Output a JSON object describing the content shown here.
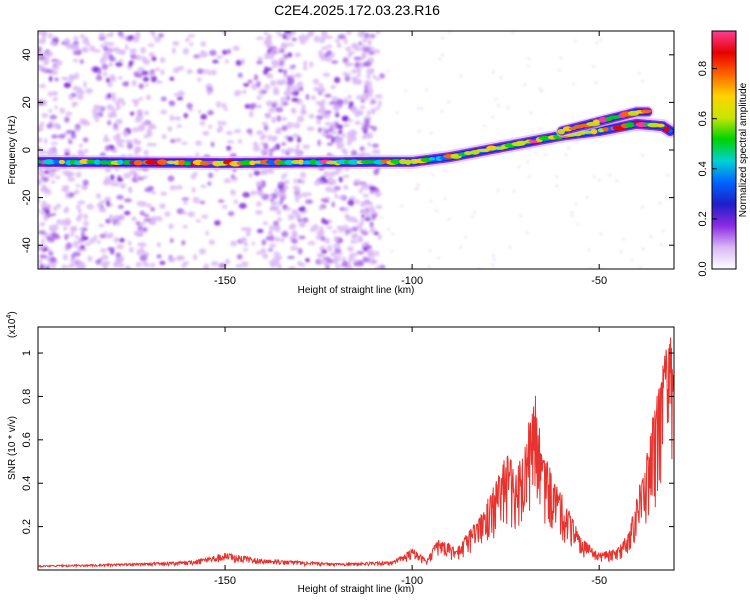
{
  "title": "C2E4.2025.172.03.23.R16",
  "chart_data": [
    {
      "type": "heatmap",
      "title": "C2E4.2025.172.03.23.R16",
      "xlabel": "Height of straight line (km)",
      "ylabel": "Frequency (Hz)",
      "xlim": [
        -200,
        -30
      ],
      "ylim": [
        -50,
        50
      ],
      "x_ticks": [
        -150,
        -100,
        -50
      ],
      "y_ticks": [
        -40,
        -20,
        0,
        20,
        40
      ],
      "colorbar": {
        "label": "Normalized spectral amplitude",
        "range": [
          0,
          0.95
        ],
        "ticks": [
          0.0,
          0.2,
          0.4,
          0.6,
          0.8
        ],
        "colors": [
          "#ffffff",
          "#d9b8f5",
          "#8b2be2",
          "#1e1ec8",
          "#0064ff",
          "#00d2d2",
          "#00d200",
          "#c8e600",
          "#ffd200",
          "#ff6400",
          "#e60000",
          "#ff3c96"
        ]
      },
      "tracks": [
        {
          "name": "main",
          "points": [
            [
              -200,
              -5
            ],
            [
              -150,
              -5.5
            ],
            [
              -110,
              -5
            ],
            [
              -100,
              -5
            ],
            [
              -90,
              -3
            ],
            [
              -80,
              0
            ],
            [
              -70,
              3
            ],
            [
              -60,
              6
            ],
            [
              -50,
              8
            ],
            [
              -40,
              11
            ],
            [
              -33,
              10
            ],
            [
              -31,
              8
            ]
          ]
        },
        {
          "name": "upper",
          "points": [
            [
              -60,
              8
            ],
            [
              -50,
              12
            ],
            [
              -40,
              16
            ],
            [
              -37,
              16
            ]
          ]
        }
      ],
      "noise_band_x": [
        -200,
        -110
      ]
    },
    {
      "type": "line",
      "xlabel": "Height of straight line (km)",
      "ylabel": "SNR (10 * v/v)",
      "y_scale_label": "(x10",
      "y_scale_exp": "4",
      "xlim": [
        -200,
        -30
      ],
      "ylim": [
        0,
        1.12
      ],
      "x_ticks": [
        -150,
        -100,
        -50
      ],
      "y_ticks": [
        0.2,
        0.4,
        0.6,
        0.8,
        1.0
      ],
      "series": [
        {
          "color": "#e8322d",
          "envelope": [
            [
              -200,
              0.02
            ],
            [
              -175,
              0.03
            ],
            [
              -160,
              0.04
            ],
            [
              -150,
              0.08
            ],
            [
              -140,
              0.05
            ],
            [
              -120,
              0.03
            ],
            [
              -105,
              0.04
            ],
            [
              -100,
              0.1
            ],
            [
              -96,
              0.05
            ],
            [
              -93,
              0.15
            ],
            [
              -88,
              0.1
            ],
            [
              -82,
              0.25
            ],
            [
              -78,
              0.4
            ],
            [
              -75,
              0.55
            ],
            [
              -72,
              0.48
            ],
            [
              -70,
              0.6
            ],
            [
              -67,
              0.82
            ],
            [
              -65,
              0.55
            ],
            [
              -62,
              0.42
            ],
            [
              -58,
              0.28
            ],
            [
              -55,
              0.15
            ],
            [
              -50,
              0.08
            ],
            [
              -45,
              0.1
            ],
            [
              -42,
              0.18
            ],
            [
              -40,
              0.35
            ],
            [
              -37,
              0.55
            ],
            [
              -35,
              0.8
            ],
            [
              -33,
              0.95
            ],
            [
              -31,
              1.12
            ],
            [
              -30,
              0.95
            ]
          ]
        }
      ]
    }
  ]
}
